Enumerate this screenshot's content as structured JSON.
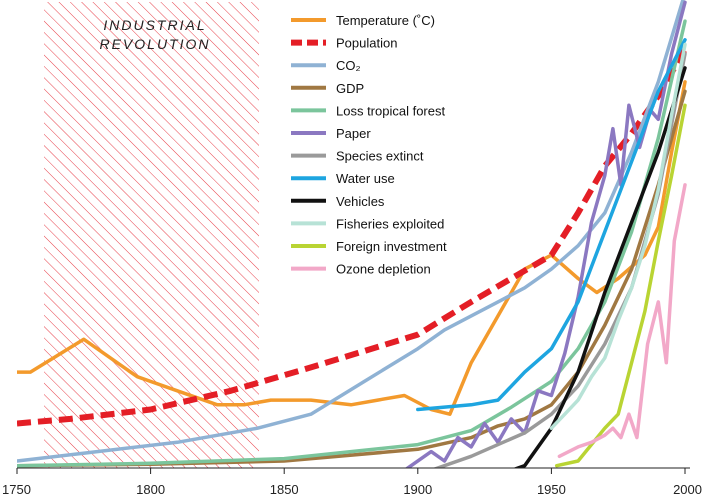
{
  "chart_data": {
    "type": "line",
    "title": "",
    "xlabel": "",
    "ylabel": "",
    "xlim": [
      1750,
      2000
    ],
    "ylim": [
      0,
      100
    ],
    "x_ticks": [
      1750,
      1800,
      1850,
      1900,
      1950,
      2000
    ],
    "grid": false,
    "legend_position": "top-center",
    "annotation": {
      "label_line1": "INDUSTRIAL",
      "label_line2": "REVOLUTION",
      "x_range": [
        1760,
        1840
      ],
      "style": "red hatched region"
    },
    "series": [
      {
        "name": "Temperature (˚C)",
        "legend_label": "Temperature (˚C)",
        "color": "#f39a2c",
        "dash": false,
        "x": [
          1750,
          1755,
          1775,
          1795,
          1810,
          1825,
          1835,
          1845,
          1860,
          1875,
          1885,
          1895,
          1905,
          1912,
          1920,
          1930,
          1940,
          1950,
          1960,
          1967,
          1975,
          1985,
          1990,
          1995,
          2000
        ],
        "y": [
          20.5,
          20.5,
          27.5,
          19.5,
          16.5,
          13.5,
          13.5,
          14.5,
          14.5,
          13.5,
          14.5,
          15.5,
          12.5,
          11.5,
          22.5,
          32.5,
          42.5,
          45.5,
          40.5,
          37.5,
          40.5,
          45.5,
          51.5,
          67.5,
          82.5
        ]
      },
      {
        "name": "Population",
        "legend_label": "Population",
        "color": "#e41e26",
        "dash": true,
        "x": [
          1750,
          1770,
          1800,
          1830,
          1860,
          1900,
          1920,
          1950,
          1960,
          1970,
          1980,
          1990,
          2000
        ],
        "y": [
          9.5,
          10.5,
          12.5,
          16.5,
          21.5,
          28.5,
          35.5,
          45.5,
          54.5,
          64.5,
          71.5,
          79.5,
          89.5
        ]
      },
      {
        "name": "CO₂",
        "legend_label": "CO₂",
        "color": "#8fb2d4",
        "dash": false,
        "x": [
          1750,
          1780,
          1810,
          1840,
          1860,
          1880,
          1900,
          1910,
          1920,
          1930,
          1940,
          1950,
          1960,
          1970,
          1980,
          1990,
          2000
        ],
        "y": [
          1.5,
          3.5,
          5.5,
          8.5,
          11.5,
          18.5,
          25.5,
          29.5,
          32.5,
          35.5,
          38.5,
          42.5,
          47.5,
          54.5,
          67.5,
          82.5,
          101.5
        ]
      },
      {
        "name": "GDP",
        "legend_label": "GDP",
        "color": "#a07842",
        "dash": false,
        "x": [
          1750,
          1800,
          1850,
          1900,
          1920,
          1930,
          1940,
          1950,
          1960,
          1970,
          1980,
          1990,
          2000
        ],
        "y": [
          0.5,
          0.8,
          1.5,
          4.0,
          6.5,
          9.0,
          10.5,
          13.5,
          20.5,
          30.5,
          42.5,
          60.5,
          80.5
        ]
      },
      {
        "name": "Loss tropical forest",
        "legend_label": "Loss tropical forest",
        "color": "#7bc59c",
        "dash": false,
        "x": [
          1750,
          1800,
          1850,
          1875,
          1900,
          1920,
          1935,
          1950,
          1960,
          1970,
          1980,
          1990,
          2000
        ],
        "y": [
          0.5,
          1.0,
          2.0,
          3.5,
          5.0,
          8.0,
          13.0,
          18.5,
          25.5,
          35.5,
          50.5,
          70.5,
          95.5
        ]
      },
      {
        "name": "Paper",
        "legend_label": "Paper",
        "color": "#8b78c1",
        "dash": false,
        "x": [
          1890,
          1905,
          1910,
          1915,
          1920,
          1925,
          1930,
          1935,
          1940,
          1945,
          1950,
          1955,
          1960,
          1965,
          1970,
          1973,
          1976,
          1979,
          1983,
          1987,
          1990,
          1995,
          2000
        ],
        "y": [
          -2.5,
          3.5,
          1.5,
          6.5,
          4.5,
          9.5,
          5.5,
          10.5,
          7.5,
          16.5,
          15.5,
          24.5,
          36.5,
          52.5,
          62.5,
          72.5,
          60.5,
          77.5,
          68.5,
          76.5,
          74.5,
          88.5,
          99.5
        ]
      },
      {
        "name": "Species extinct",
        "legend_label": "Species extinct",
        "color": "#9a9a9a",
        "dash": false,
        "x": [
          1900,
          1920,
          1940,
          1950,
          1960,
          1970,
          1980,
          1990,
          2000
        ],
        "y": [
          -1.5,
          2.5,
          7.5,
          11.5,
          17.5,
          26.5,
          38.5,
          58.5,
          88.5
        ]
      },
      {
        "name": "Water use",
        "legend_label": "Water use",
        "color": "#1ea5e0",
        "dash": false,
        "x": [
          1900,
          1920,
          1930,
          1940,
          1950,
          1960,
          1970,
          1980,
          1990,
          2000
        ],
        "y": [
          12.5,
          13.5,
          14.5,
          20.5,
          25.5,
          35.5,
          50.5,
          65.5,
          80.5,
          91.5
        ]
      },
      {
        "name": "Vehicles",
        "legend_label": "Vehicles",
        "color": "#111111",
        "dash": false,
        "x": [
          1900,
          1930,
          1940,
          1950,
          1960,
          1970,
          1980,
          1990,
          2000
        ],
        "y": [
          -2.5,
          -1.5,
          0.5,
          8.5,
          20.5,
          37.5,
          52.5,
          67.5,
          85.5
        ]
      },
      {
        "name": "Fisheries exploited",
        "legend_label": "Fisheries exploited",
        "color": "#b7e2d6",
        "dash": false,
        "x": [
          1950,
          1955,
          1960,
          1965,
          1970,
          1975,
          1980,
          1985,
          1990,
          1995,
          2000
        ],
        "y": [
          8.5,
          11.5,
          14.5,
          19.5,
          23.5,
          31.5,
          38.5,
          47.5,
          59.5,
          75.5,
          90.5
        ]
      },
      {
        "name": "Foreign investment",
        "legend_label": "Foreign investment",
        "color": "#b9d433",
        "dash": false,
        "x": [
          1952,
          1960,
          1970,
          1975,
          1980,
          1985,
          1990,
          1995,
          2000
        ],
        "y": [
          0.5,
          1.5,
          8.5,
          11.5,
          22.5,
          33.5,
          48.5,
          62.5,
          77.5
        ]
      },
      {
        "name": "Ozone depletion",
        "legend_label": "Ozone depletion",
        "color": "#f2a8c8",
        "dash": false,
        "x": [
          1953,
          1960,
          1965,
          1970,
          1973,
          1976,
          1979,
          1982,
          1986,
          1990,
          1993,
          1996,
          2000
        ],
        "y": [
          2.5,
          4.5,
          5.5,
          7.0,
          8.5,
          6.5,
          11.5,
          6.5,
          26.5,
          35.5,
          22.5,
          48.5,
          60.5
        ]
      }
    ]
  }
}
